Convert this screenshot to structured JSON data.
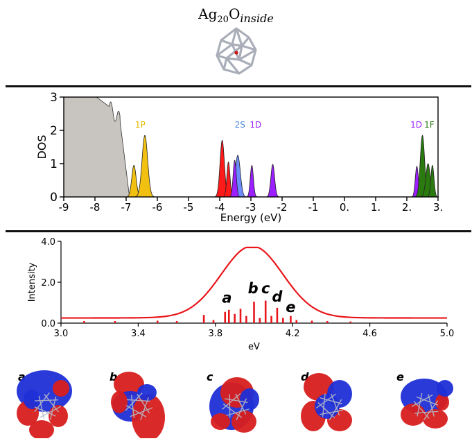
{
  "figure": {
    "title": {
      "base": "Ag",
      "sub": "20",
      "mid": "O",
      "italic": "inside"
    }
  },
  "chart_data": [
    {
      "type": "area",
      "xlabel": "Energy (eV)",
      "ylabel": "DOS",
      "xlim": [
        -9,
        3
      ],
      "ylim": [
        0,
        3
      ],
      "xticks": [
        -9,
        -8,
        -7,
        -6,
        -5,
        -4,
        -3,
        -2,
        -1,
        0,
        1,
        2,
        3
      ],
      "xtick_labels": [
        "-9",
        "-8",
        "-7",
        "-6",
        "-5",
        "-4",
        "-3",
        "-2",
        "-1",
        "0.",
        "1.",
        "2.",
        "3."
      ],
      "yticks": [
        0,
        1,
        2,
        3
      ],
      "ytick_labels": [
        "0",
        "1",
        "2",
        "3"
      ],
      "peaks": [
        {
          "label": "1P",
          "color": "#f2c010",
          "label_color": "#e6b800",
          "label_x": -6.55,
          "parts": [
            [
              -6.75,
              0.95,
              0.07
            ],
            [
              -6.4,
              1.85,
              0.09
            ]
          ]
        },
        {
          "label": "",
          "color": "#ff1a1a",
          "label_color": "",
          "label_x": 0,
          "parts": [
            [
              -3.92,
              1.7,
              0.07
            ],
            [
              -3.72,
              1.05,
              0.05
            ]
          ]
        },
        {
          "label": "2S",
          "color": "#6a8cff",
          "label_color": "#4a8be0",
          "label_x": -3.35,
          "parts": [
            [
              -3.42,
              1.25,
              0.08
            ]
          ]
        },
        {
          "label": "1D",
          "color": "#9b1fff",
          "label_color": "#9b1fff",
          "label_x": -2.85,
          "parts": [
            [
              -3.52,
              1.1,
              0.05
            ],
            [
              -2.97,
              0.95,
              0.05
            ],
            [
              -2.3,
              0.98,
              0.06
            ]
          ]
        },
        {
          "label": "1D",
          "color": "#9b1fff",
          "label_color": "#9b1fff",
          "label_x": 2.3,
          "parts": [
            [
              2.32,
              0.92,
              0.05
            ]
          ]
        },
        {
          "label": "1F",
          "color": "#2a7a10",
          "label_color": "#2a7a10",
          "label_x": 2.72,
          "parts": [
            [
              2.5,
              1.85,
              0.07
            ],
            [
              2.68,
              1.0,
              0.07
            ],
            [
              2.82,
              0.95,
              0.05
            ]
          ]
        }
      ],
      "background_band": {
        "color": "#c8c4bf",
        "x_start": -9,
        "x_end": -6.9
      }
    },
    {
      "type": "line",
      "xlabel": "eV",
      "ylabel": "Intensity",
      "xlim": [
        3.0,
        5.0
      ],
      "ylim": [
        0.0,
        4.0
      ],
      "xticks": [
        3.0,
        3.4,
        3.8,
        4.2,
        4.6,
        5.0
      ],
      "xtick_labels": [
        "3.0",
        "3.4",
        "3.8",
        "4.2",
        "4.6",
        "5.0"
      ],
      "yticks": [
        0.0,
        2.0,
        4.0
      ],
      "ytick_labels": [
        "0.0",
        "2.0",
        "4.0"
      ],
      "color": "#e8161b",
      "envelope": {
        "baseline": 0.25,
        "peak_x": 3.99,
        "peak_y": 3.7,
        "width": 0.16
      },
      "sticks": [
        [
          3.12,
          0.1
        ],
        [
          3.28,
          0.1
        ],
        [
          3.5,
          0.12
        ],
        [
          3.6,
          0.1
        ],
        [
          3.74,
          0.4
        ],
        [
          3.79,
          0.15
        ],
        [
          3.85,
          0.55
        ],
        [
          3.87,
          0.65
        ],
        [
          3.9,
          0.45
        ],
        [
          3.93,
          0.7
        ],
        [
          3.96,
          0.35
        ],
        [
          4.0,
          1.05
        ],
        [
          4.03,
          0.25
        ],
        [
          4.06,
          1.1
        ],
        [
          4.09,
          0.35
        ],
        [
          4.12,
          0.75
        ],
        [
          4.15,
          0.25
        ],
        [
          4.19,
          0.35
        ],
        [
          4.22,
          0.15
        ],
        [
          4.3,
          0.12
        ],
        [
          4.38,
          0.1
        ],
        [
          4.5,
          0.08
        ]
      ],
      "annotations": [
        {
          "text": "a",
          "x": 3.86,
          "y": 1.0
        },
        {
          "text": "b",
          "x": 3.995,
          "y": 1.45
        },
        {
          "text": "c",
          "x": 4.06,
          "y": 1.45
        },
        {
          "text": "d",
          "x": 4.12,
          "y": 1.05
        },
        {
          "text": "e",
          "x": 4.19,
          "y": 0.55
        }
      ]
    }
  ],
  "orbitals": [
    {
      "label": "a"
    },
    {
      "label": "b"
    },
    {
      "label": "c"
    },
    {
      "label": "d"
    },
    {
      "label": "e"
    }
  ],
  "colors": {
    "lobe_red": "#d81e1e",
    "lobe_blue": "#1f2fd6",
    "ag_frame": "#b8bcc6"
  }
}
